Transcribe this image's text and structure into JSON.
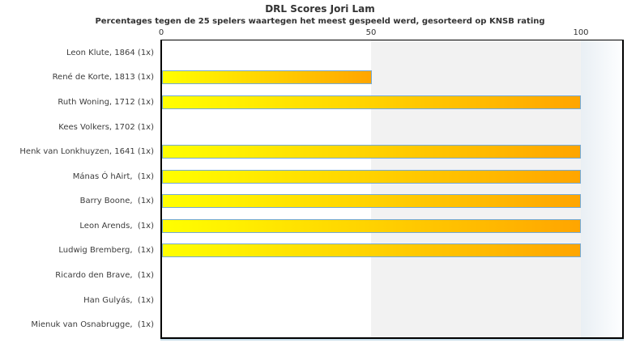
{
  "chart": {
    "title": "DRL Scores Jori Lam",
    "subtitle": "Percentages tegen de 25 spelers waartegen het meest gespeeld werd, gesorteerd op KNSB rating",
    "axis_ticks": [
      "0",
      "50",
      "100"
    ]
  },
  "chart_data": {
    "type": "bar",
    "orientation": "horizontal",
    "title": "DRL Scores Jori Lam",
    "subtitle": "Percentages tegen de 25 spelers waartegen het meest gespeeld werd, gesorteerd op KNSB rating",
    "xlabel": "",
    "ylabel": "",
    "xlim": [
      0,
      110
    ],
    "x_ticks": [
      0,
      50,
      100
    ],
    "grid": false,
    "legend": "none",
    "categories": [
      "Leon Klute, 1864 (1x)",
      "René de Korte, 1813 (1x)",
      "Ruth Woning, 1712 (1x)",
      "Kees Volkers, 1702 (1x)",
      "Henk van Lonkhuyzen, 1641 (1x)",
      "Mánas Ó hAirt,  (1x)",
      "Barry Boone,  (1x)",
      "Leon Arends,  (1x)",
      "Ludwig Bremberg,  (1x)",
      "Ricardo den Brave,  (1x)",
      "Han Gulyás,  (1x)",
      "Mienuk van Osnabrugge,  (1x)"
    ],
    "values": [
      0,
      50,
      100,
      0,
      100,
      100,
      100,
      100,
      100,
      0,
      0,
      0
    ],
    "colors": {
      "bar_gradient_start": "#ffff00",
      "bar_gradient_end": "#ffa500",
      "bar_border": "#73a9d6",
      "band_50_100": "#f2f2f2",
      "band_over_100": "#e9eff4",
      "plot_border": "#000000",
      "plot_shadow": "#c6dde9",
      "text": "#333333"
    }
  }
}
